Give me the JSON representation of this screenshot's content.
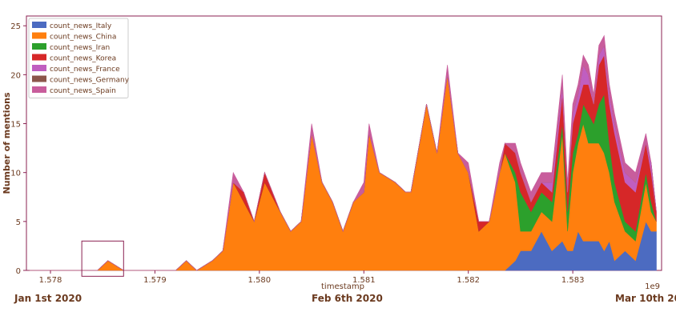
{
  "chart_data": {
    "type": "area",
    "stacked": true,
    "xlabel": "timestamp",
    "ylabel": "Number of mentions",
    "x_offset_label": "1e9",
    "xlim": [
      1577770000,
      1583850000
    ],
    "ylim": [
      0,
      26
    ],
    "x_ticks": [
      1578000000,
      1579000000,
      1580000000,
      1581000000,
      1582000000,
      1583000000
    ],
    "x_tick_labels": [
      "1.578",
      "1.579",
      "1.580",
      "1.581",
      "1.582",
      "1.583"
    ],
    "y_ticks": [
      0,
      5,
      10,
      15,
      20,
      25
    ],
    "y_tick_labels": [
      "0",
      "5",
      "10",
      "15",
      "20",
      "25"
    ],
    "grid": false,
    "legend_position": "top-left",
    "highlight_box": {
      "x_range": [
        1578300000,
        1578700000
      ],
      "y_range": [
        -0.6,
        3.0
      ]
    },
    "x": [
      1577800000,
      1578100000,
      1578350000,
      1578450000,
      1578550000,
      1578700000,
      1578900000,
      1579200000,
      1579300000,
      1579400000,
      1579550000,
      1579650000,
      1579750000,
      1579850000,
      1579950000,
      1580050000,
      1580200000,
      1580300000,
      1580400000,
      1580500000,
      1580600000,
      1580700000,
      1580800000,
      1580900000,
      1581000000,
      1581050000,
      1581150000,
      1581300000,
      1581400000,
      1581450000,
      1581500000,
      1581600000,
      1581700000,
      1581800000,
      1581900000,
      1582000000,
      1582100000,
      1582200000,
      1582300000,
      1582350000,
      1582450000,
      1582500000,
      1582600000,
      1582700000,
      1582800000,
      1582900000,
      1582950000,
      1583000000,
      1583050000,
      1583100000,
      1583150000,
      1583200000,
      1583250000,
      1583300000,
      1583350000,
      1583400000,
      1583500000,
      1583600000,
      1583700000,
      1583750000,
      1583800000
    ],
    "series": [
      {
        "name": "count_news_Italy",
        "color": "#4c6bc1",
        "values": [
          0,
          0,
          0,
          0,
          0,
          0,
          0,
          0,
          0,
          0,
          0,
          0,
          0,
          0,
          0,
          0,
          0,
          0,
          0,
          0,
          0,
          0,
          0,
          0,
          0,
          0,
          0,
          0,
          0,
          0,
          0,
          0,
          0,
          0,
          0,
          0,
          0,
          0,
          0,
          0,
          1,
          2,
          2,
          4,
          2,
          3,
          2,
          2,
          4,
          3,
          3,
          3,
          3,
          2,
          3,
          1,
          2,
          1,
          5,
          4,
          4
        ]
      },
      {
        "name": "count_news_China",
        "color": "#ff7f0e",
        "values": [
          0,
          0,
          0,
          0,
          1,
          0,
          0,
          0,
          1,
          0,
          1,
          2,
          9,
          7,
          5,
          9,
          6,
          4,
          5,
          14,
          9,
          7,
          4,
          7,
          8,
          14,
          10,
          9,
          8,
          8,
          11,
          17,
          12,
          20,
          12,
          10,
          4,
          5,
          10,
          12,
          8,
          2,
          2,
          2,
          3,
          11,
          2,
          8,
          9,
          12,
          10,
          10,
          10,
          10,
          7,
          6,
          2,
          2,
          4,
          2,
          1
        ]
      },
      {
        "name": "count_news_Iran",
        "color": "#2ca02c",
        "values": [
          0,
          0,
          0,
          0,
          0,
          0,
          0,
          0,
          0,
          0,
          0,
          0,
          0,
          0,
          0,
          0,
          0,
          0,
          0,
          0,
          0,
          0,
          0,
          0,
          0,
          0,
          0,
          0,
          0,
          0,
          0,
          0,
          0,
          0,
          0,
          0,
          0,
          0,
          0,
          0,
          1,
          4,
          2,
          2,
          2,
          1,
          2,
          2,
          1,
          2,
          3,
          2,
          4,
          6,
          3,
          2,
          1,
          1,
          1,
          1,
          0
        ]
      },
      {
        "name": "count_news_Korea",
        "color": "#d62728",
        "values": [
          0,
          0,
          0,
          0,
          0,
          0,
          0,
          0,
          0,
          0,
          0,
          0,
          0,
          1,
          0,
          1,
          0,
          0,
          0,
          0,
          0,
          0,
          0,
          0,
          0,
          0,
          0,
          0,
          0,
          0,
          0,
          0,
          0,
          0,
          0,
          0,
          1,
          0,
          0,
          1,
          2,
          2,
          1,
          1,
          1,
          3,
          2,
          3,
          3,
          2,
          3,
          2,
          4,
          4,
          4,
          5,
          4,
          4,
          3,
          3,
          1
        ]
      },
      {
        "name": "count_news_France",
        "color": "#c05ec0",
        "values": [
          0,
          0,
          0,
          0,
          0,
          0,
          0,
          0,
          0,
          0,
          0,
          0,
          0,
          0,
          0,
          0,
          0,
          0,
          0,
          0,
          0,
          0,
          0,
          0,
          0,
          0,
          0,
          0,
          0,
          0,
          0,
          0,
          0,
          0,
          0,
          0,
          0,
          0,
          0,
          0,
          0,
          0,
          0,
          0,
          1,
          1,
          0,
          1,
          1,
          2,
          1,
          0,
          1,
          1,
          1,
          1,
          1,
          1,
          0,
          1,
          0
        ]
      },
      {
        "name": "count_news_Germany",
        "color": "#8c564b",
        "values": [
          0,
          0,
          0,
          0,
          0,
          0,
          0,
          0,
          0,
          0,
          0,
          0,
          0,
          0,
          0,
          0,
          0,
          0,
          0,
          0,
          0,
          0,
          0,
          0,
          0,
          0,
          0,
          0,
          0,
          0,
          0,
          0,
          0,
          0,
          0,
          0,
          0,
          0,
          0,
          0,
          0,
          0,
          0,
          0,
          0,
          0,
          0,
          0,
          0,
          0,
          0,
          0,
          0,
          0,
          0,
          0,
          0,
          0,
          0,
          0,
          0
        ]
      },
      {
        "name": "count_news_Spain",
        "color": "#c85d9c",
        "values": [
          0,
          0,
          0,
          0,
          0,
          0,
          0,
          0,
          0,
          0,
          0,
          0,
          1,
          0,
          0,
          0,
          0,
          0,
          0,
          1,
          0,
          0,
          0,
          0,
          1,
          1,
          0,
          0,
          0,
          0,
          0,
          0,
          0,
          1,
          0,
          1,
          0,
          0,
          1,
          0,
          1,
          1,
          1,
          1,
          1,
          1,
          1,
          1,
          1,
          1,
          1,
          1,
          1,
          1,
          1,
          1,
          1,
          1,
          1,
          0,
          0
        ]
      }
    ]
  },
  "annotations": {
    "date_start": "Jan 1st 2020",
    "date_mid": "Feb 6th 2020",
    "date_end": "Mar 10th 2020"
  }
}
